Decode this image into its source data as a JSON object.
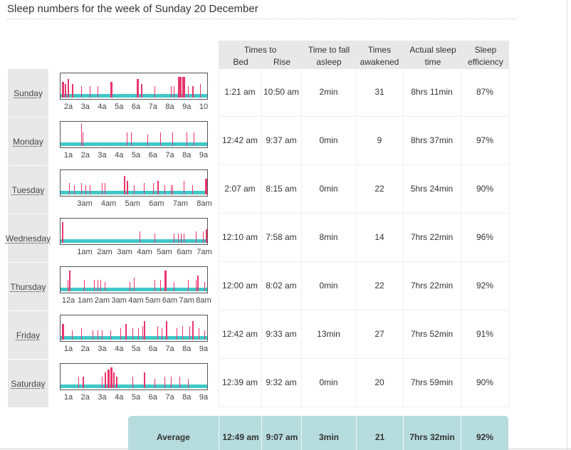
{
  "page": {
    "title": "Sleep numbers for the week of Sunday 20 December"
  },
  "header": {
    "times_to": "Times to",
    "bed": "Bed",
    "rise": "Rise",
    "time_to_fall_asleep_1": "Time to fall",
    "time_to_fall_asleep_2": "asleep",
    "times_awakened_1": "Times",
    "times_awakened_2": "awakened",
    "actual_sleep_1": "Actual sleep",
    "actual_sleep_2": "time",
    "sleep_efficiency_1": "Sleep",
    "sleep_efficiency_2": "efficiency"
  },
  "colors": {
    "sleep": "#3fc8c8",
    "awake": "#e8356b",
    "header_bg": "#e8e8e8",
    "average_bg": "#b7dcde"
  },
  "days": [
    {
      "day": "Sunday",
      "bed": "1:21 am",
      "rise": "10:50 am",
      "fall": "2min",
      "awakened": "31",
      "actual": "8hrs 11min",
      "eff": "87%",
      "ticks": [
        "2a",
        "3a",
        "4a",
        "5a",
        "6a",
        "7a",
        "8a",
        "9a",
        "10"
      ],
      "spikes": [
        [
          0.01,
          0.7,
          3
        ],
        [
          0.03,
          0.6,
          2
        ],
        [
          0.05,
          0.8,
          2
        ],
        [
          0.08,
          0.6,
          2
        ],
        [
          0.14,
          0.5,
          1
        ],
        [
          0.2,
          0.5,
          1
        ],
        [
          0.25,
          0.5,
          1
        ],
        [
          0.34,
          0.7,
          3
        ],
        [
          0.52,
          0.8,
          3
        ],
        [
          0.55,
          0.6,
          2
        ],
        [
          0.64,
          0.5,
          1
        ],
        [
          0.75,
          0.5,
          1
        ],
        [
          0.77,
          0.5,
          1
        ],
        [
          0.8,
          0.9,
          5
        ],
        [
          0.83,
          0.9,
          4
        ],
        [
          0.87,
          0.5,
          1
        ],
        [
          0.9,
          0.5,
          2
        ],
        [
          0.95,
          0.6,
          1
        ]
      ]
    },
    {
      "day": "Monday",
      "bed": "12:42 am",
      "rise": "9:37 am",
      "fall": "0min",
      "awakened": "9",
      "actual": "8hrs 37min",
      "eff": "97%",
      "ticks": [
        "1a",
        "2a",
        "3a",
        "4a",
        "5a",
        "6a",
        "7a",
        "8a",
        "9a"
      ],
      "spikes": [
        [
          0.14,
          1.0,
          1
        ],
        [
          0.15,
          0.6,
          1
        ],
        [
          0.45,
          0.6,
          1
        ],
        [
          0.48,
          0.6,
          1
        ],
        [
          0.59,
          0.5,
          1
        ],
        [
          0.68,
          0.6,
          1
        ],
        [
          0.76,
          0.6,
          1
        ],
        [
          0.86,
          0.6,
          1
        ],
        [
          0.91,
          0.6,
          1
        ]
      ]
    },
    {
      "day": "Tuesday",
      "bed": "2:07 am",
      "rise": "8:15 am",
      "fall": "0min",
      "awakened": "22",
      "actual": "5hrs 24min",
      "eff": "90%",
      "ticks": [
        "3am",
        "4am",
        "5am",
        "6am",
        "7am",
        "8am"
      ],
      "spikes": [
        [
          0.06,
          0.5,
          1
        ],
        [
          0.09,
          0.4,
          1
        ],
        [
          0.14,
          0.5,
          1
        ],
        [
          0.17,
          0.4,
          1
        ],
        [
          0.2,
          0.4,
          1
        ],
        [
          0.28,
          0.5,
          1
        ],
        [
          0.3,
          0.5,
          1
        ],
        [
          0.43,
          0.8,
          2
        ],
        [
          0.45,
          0.6,
          2
        ],
        [
          0.5,
          0.4,
          1
        ],
        [
          0.57,
          0.5,
          1
        ],
        [
          0.63,
          0.5,
          1
        ],
        [
          0.66,
          0.6,
          2
        ],
        [
          0.71,
          0.4,
          1
        ],
        [
          0.75,
          0.4,
          1
        ],
        [
          0.76,
          0.4,
          1
        ],
        [
          0.84,
          0.6,
          1
        ],
        [
          0.9,
          0.4,
          1
        ],
        [
          0.99,
          0.7,
          3
        ]
      ]
    },
    {
      "day": "Wednesday",
      "bed": "12:10 am",
      "rise": "7:58 am",
      "fall": "8min",
      "awakened": "14",
      "actual": "7hrs 22min",
      "eff": "96%",
      "ticks": [
        "1am",
        "2am",
        "3am",
        "4am",
        "5am",
        "6am",
        "7am"
      ],
      "spikes": [
        [
          0.01,
          0.9,
          2
        ],
        [
          0.54,
          0.5,
          1
        ],
        [
          0.64,
          0.4,
          1
        ],
        [
          0.77,
          0.4,
          1
        ],
        [
          0.8,
          0.4,
          1
        ],
        [
          0.82,
          0.4,
          1
        ],
        [
          0.84,
          0.4,
          1
        ],
        [
          0.92,
          0.5,
          1
        ],
        [
          0.97,
          0.5,
          1
        ],
        [
          0.99,
          0.6,
          2
        ]
      ]
    },
    {
      "day": "Thursday",
      "bed": "12:00 am",
      "rise": "8:02 am",
      "fall": "0min",
      "awakened": "22",
      "actual": "7hrs 22min",
      "eff": "92%",
      "ticks": [
        "12a",
        "1am",
        "2am",
        "3am",
        "4am",
        "5am",
        "6am",
        "7am",
        "8am"
      ],
      "spikes": [
        [
          0.05,
          0.5,
          1
        ],
        [
          0.06,
          0.9,
          2
        ],
        [
          0.16,
          0.5,
          1
        ],
        [
          0.23,
          0.5,
          1
        ],
        [
          0.25,
          0.5,
          1
        ],
        [
          0.27,
          0.5,
          1
        ],
        [
          0.3,
          0.4,
          1
        ],
        [
          0.47,
          0.4,
          1
        ],
        [
          0.5,
          0.6,
          1
        ],
        [
          0.64,
          0.5,
          1
        ],
        [
          0.68,
          0.5,
          1
        ],
        [
          0.71,
          0.9,
          3
        ],
        [
          0.77,
          0.4,
          1
        ],
        [
          0.87,
          0.5,
          1
        ],
        [
          0.92,
          0.5,
          1
        ],
        [
          0.93,
          0.7,
          2
        ],
        [
          0.98,
          0.4,
          1
        ]
      ]
    },
    {
      "day": "Friday",
      "bed": "12:42 am",
      "rise": "9:33 am",
      "fall": "13min",
      "awakened": "27",
      "actual": "7hrs 52min",
      "eff": "91%",
      "ticks": [
        "1a",
        "2a",
        "3a",
        "4a",
        "5a",
        "6a",
        "7a",
        "8a",
        "9a"
      ],
      "spikes": [
        [
          0.01,
          0.7,
          3
        ],
        [
          0.08,
          0.4,
          1
        ],
        [
          0.14,
          0.5,
          1
        ],
        [
          0.22,
          0.4,
          1
        ],
        [
          0.25,
          0.4,
          1
        ],
        [
          0.28,
          0.4,
          1
        ],
        [
          0.34,
          0.4,
          1
        ],
        [
          0.41,
          0.5,
          1
        ],
        [
          0.44,
          0.7,
          2
        ],
        [
          0.49,
          0.5,
          1
        ],
        [
          0.53,
          0.5,
          1
        ],
        [
          0.56,
          0.6,
          1
        ],
        [
          0.57,
          0.8,
          2
        ],
        [
          0.66,
          0.6,
          1
        ],
        [
          0.69,
          0.5,
          1
        ],
        [
          0.72,
          0.8,
          2
        ],
        [
          0.79,
          0.5,
          1
        ],
        [
          0.83,
          0.6,
          1
        ],
        [
          0.88,
          0.6,
          1
        ],
        [
          0.9,
          0.8,
          2
        ],
        [
          0.94,
          0.5,
          1
        ],
        [
          0.98,
          0.4,
          1
        ]
      ]
    },
    {
      "day": "Saturday",
      "bed": "12:39 am",
      "rise": "9:32 am",
      "fall": "0min",
      "awakened": "20",
      "actual": "7hrs 59min",
      "eff": "90%",
      "ticks": [
        "1a",
        "2a",
        "3a",
        "4a",
        "5a",
        "6a",
        "7a",
        "8a",
        "9a"
      ],
      "spikes": [
        [
          0.12,
          0.5,
          1
        ],
        [
          0.15,
          0.5,
          2
        ],
        [
          0.28,
          0.5,
          1
        ],
        [
          0.3,
          0.7,
          2
        ],
        [
          0.3,
          0.5,
          1
        ],
        [
          0.32,
          0.8,
          3
        ],
        [
          0.34,
          0.9,
          3
        ],
        [
          0.36,
          0.7,
          2
        ],
        [
          0.38,
          0.5,
          2
        ],
        [
          0.49,
          0.5,
          1
        ],
        [
          0.57,
          0.7,
          2
        ],
        [
          0.64,
          0.4,
          1
        ],
        [
          0.71,
          0.5,
          1
        ],
        [
          0.75,
          0.5,
          1
        ],
        [
          0.81,
          0.5,
          1
        ],
        [
          0.87,
          0.4,
          1
        ]
      ]
    }
  ],
  "average": {
    "label": "Average",
    "bed": "12:49 am",
    "rise": "9:07 am",
    "fall": "3min",
    "awakened": "21",
    "actual": "7hrs 32min",
    "eff": "92%"
  }
}
